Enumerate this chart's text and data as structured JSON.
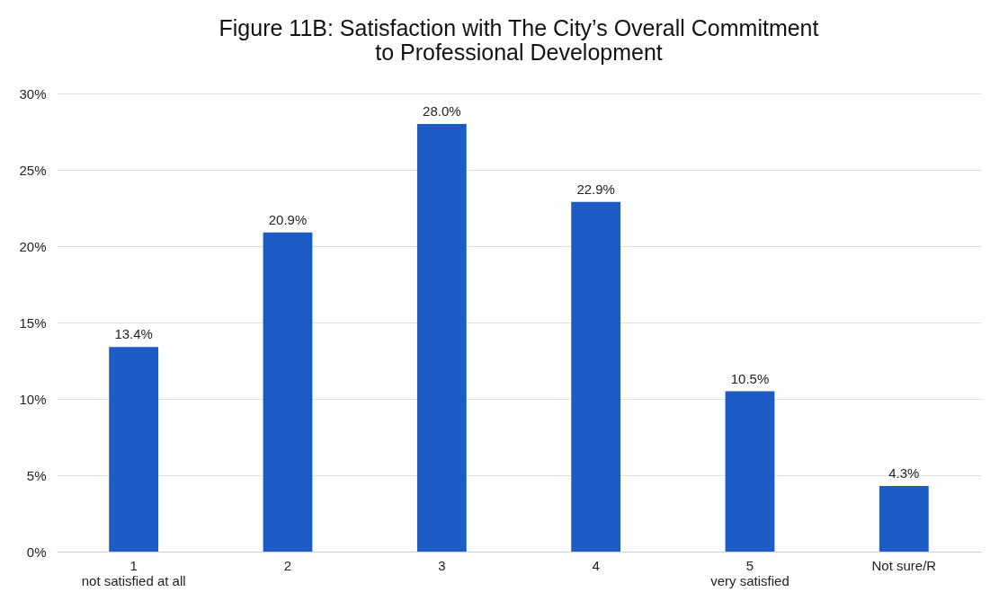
{
  "chart_data": {
    "type": "bar",
    "title": [
      "Figure 11B: Satisfaction with The City’s Overall Commitment",
      "to Professional Development"
    ],
    "categories": [
      "1\nnot satisfied at all",
      "2",
      "3",
      "4",
      "5\nvery satisfied",
      "Not sure/R"
    ],
    "values": [
      13.4,
      20.9,
      28.0,
      22.9,
      10.5,
      4.3
    ],
    "value_labels": [
      "13.4%",
      "20.9%",
      "28.0%",
      "22.9%",
      "10.5%",
      "4.3%"
    ],
    "color": "#1c5cc4",
    "ylim": [
      0,
      30
    ],
    "yticks": [
      {
        "value": 0,
        "label": "0%"
      },
      {
        "value": 5,
        "label": "5%"
      },
      {
        "value": 10,
        "label": "10%"
      },
      {
        "value": 15,
        "label": "15%"
      },
      {
        "value": 20,
        "label": "20%"
      },
      {
        "value": 25,
        "label": "25%"
      },
      {
        "value": 30,
        "label": "30%"
      }
    ],
    "grid": "y"
  }
}
